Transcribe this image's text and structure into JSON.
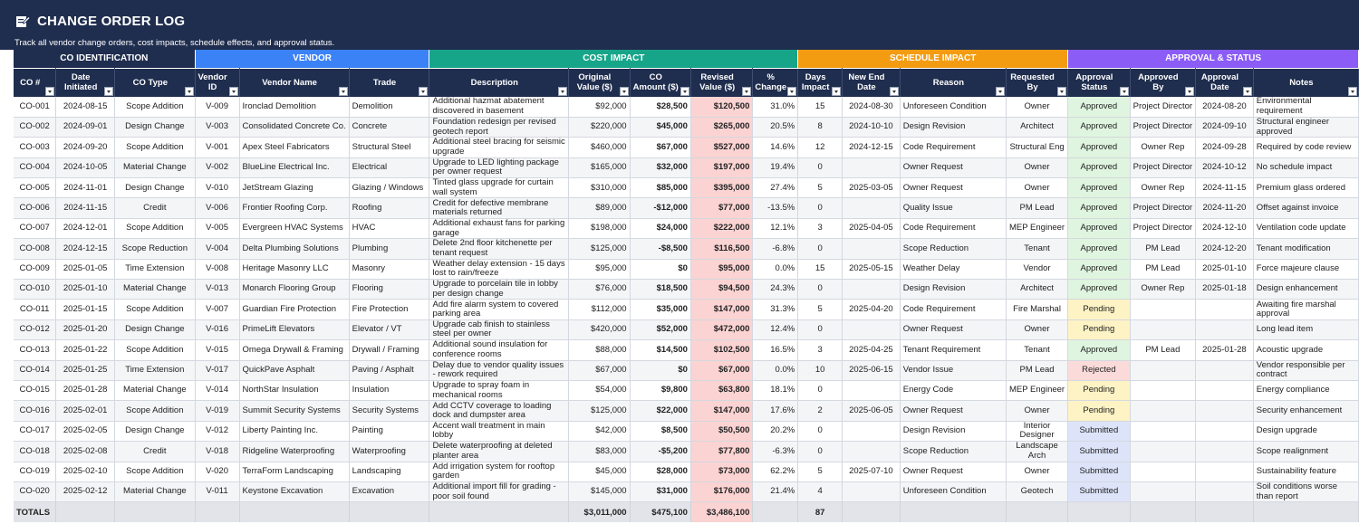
{
  "title": "CHANGE ORDER LOG",
  "subtitle": "Track all vendor change orders, cost impacts, schedule effects, and approval status.",
  "colors": {
    "header_bg": "#1f2d4e",
    "group_id": "#1f2d4e",
    "group_vendor": "#3b82f6",
    "group_cost": "#17a589",
    "group_schedule": "#f39c12",
    "group_approval": "#8b5cf6"
  },
  "groups": [
    {
      "label": "CO IDENTIFICATION",
      "span": 3,
      "color": "#1f2d4e"
    },
    {
      "label": "VENDOR",
      "span": 3,
      "color": "#3b82f6"
    },
    {
      "label": "COST IMPACT",
      "span": 5,
      "color": "#17a589"
    },
    {
      "label": "SCHEDULE IMPACT",
      "span": 4,
      "color": "#f39c12"
    },
    {
      "label": "APPROVAL & STATUS",
      "span": 4,
      "color": "#8b5cf6"
    }
  ],
  "headers": [
    "CO #",
    "Date Initiated",
    "CO Type",
    "Vendor ID",
    "Vendor Name",
    "Trade",
    "Description",
    "Original Value ($)",
    "CO Amount ($)",
    "Revised Value ($)",
    "% Change",
    "Days Impact",
    "New End Date",
    "Reason",
    "Requested By",
    "Approval Status",
    "Approved By",
    "Approval Date",
    "Notes"
  ],
  "rows": [
    [
      "CO-001",
      "2024-08-15",
      "Scope Addition",
      "V-009",
      "Ironclad Demolition",
      "Demolition",
      "Additional hazmat abatement discovered in basement",
      "$92,000",
      "$28,500",
      "$120,500",
      "31.0%",
      "15",
      "2024-08-30",
      "Unforeseen Condition",
      "Owner",
      "Approved",
      "Project Director",
      "2024-08-20",
      "Environmental requirement"
    ],
    [
      "CO-002",
      "2024-09-01",
      "Design Change",
      "V-003",
      "Consolidated Concrete Co.",
      "Concrete",
      "Foundation redesign per revised geotech report",
      "$220,000",
      "$45,000",
      "$265,000",
      "20.5%",
      "8",
      "2024-10-10",
      "Design Revision",
      "Architect",
      "Approved",
      "Project Director",
      "2024-09-10",
      "Structural engineer approved"
    ],
    [
      "CO-003",
      "2024-09-20",
      "Scope Addition",
      "V-001",
      "Apex Steel Fabricators",
      "Structural Steel",
      "Additional steel bracing for seismic upgrade",
      "$460,000",
      "$67,000",
      "$527,000",
      "14.6%",
      "12",
      "2024-12-15",
      "Code Requirement",
      "Structural Eng",
      "Approved",
      "Owner Rep",
      "2024-09-28",
      "Required by code review"
    ],
    [
      "CO-004",
      "2024-10-05",
      "Material Change",
      "V-002",
      "BlueLine Electrical Inc.",
      "Electrical",
      "Upgrade to LED lighting package per owner request",
      "$165,000",
      "$32,000",
      "$197,000",
      "19.4%",
      "0",
      "",
      "Owner Request",
      "Owner",
      "Approved",
      "Project Director",
      "2024-10-12",
      "No schedule impact"
    ],
    [
      "CO-005",
      "2024-11-01",
      "Design Change",
      "V-010",
      "JetStream Glazing",
      "Glazing / Windows",
      "Tinted glass upgrade for curtain wall system",
      "$310,000",
      "$85,000",
      "$395,000",
      "27.4%",
      "5",
      "2025-03-05",
      "Owner Request",
      "Owner",
      "Approved",
      "Owner Rep",
      "2024-11-15",
      "Premium glass ordered"
    ],
    [
      "CO-006",
      "2024-11-15",
      "Credit",
      "V-006",
      "Frontier Roofing Corp.",
      "Roofing",
      "Credit for defective membrane materials returned",
      "$89,000",
      "-$12,000",
      "$77,000",
      "-13.5%",
      "0",
      "",
      "Quality Issue",
      "PM Lead",
      "Approved",
      "Project Director",
      "2024-11-20",
      "Offset against invoice"
    ],
    [
      "CO-007",
      "2024-12-01",
      "Scope Addition",
      "V-005",
      "Evergreen HVAC Systems",
      "HVAC",
      "Additional exhaust fans for parking garage",
      "$198,000",
      "$24,000",
      "$222,000",
      "12.1%",
      "3",
      "2025-04-05",
      "Code Requirement",
      "MEP Engineer",
      "Approved",
      "Project Director",
      "2024-12-10",
      "Ventilation code update"
    ],
    [
      "CO-008",
      "2024-12-15",
      "Scope Reduction",
      "V-004",
      "Delta Plumbing Solutions",
      "Plumbing",
      "Delete 2nd floor kitchenette per tenant request",
      "$125,000",
      "-$8,500",
      "$116,500",
      "-6.8%",
      "0",
      "",
      "Scope Reduction",
      "Tenant",
      "Approved",
      "PM Lead",
      "2024-12-20",
      "Tenant modification"
    ],
    [
      "CO-009",
      "2025-01-05",
      "Time Extension",
      "V-008",
      "Heritage Masonry LLC",
      "Masonry",
      "Weather delay extension - 15 days lost to rain/freeze",
      "$95,000",
      "$0",
      "$95,000",
      "0.0%",
      "15",
      "2025-05-15",
      "Weather Delay",
      "Vendor",
      "Approved",
      "PM Lead",
      "2025-01-10",
      "Force majeure clause"
    ],
    [
      "CO-010",
      "2025-01-10",
      "Material Change",
      "V-013",
      "Monarch Flooring Group",
      "Flooring",
      "Upgrade to porcelain tile in lobby per design change",
      "$76,000",
      "$18,500",
      "$94,500",
      "24.3%",
      "0",
      "",
      "Design Revision",
      "Architect",
      "Approved",
      "Owner Rep",
      "2025-01-18",
      "Design enhancement"
    ],
    [
      "CO-011",
      "2025-01-15",
      "Scope Addition",
      "V-007",
      "Guardian Fire Protection",
      "Fire Protection",
      "Add fire alarm system to covered parking area",
      "$112,000",
      "$35,000",
      "$147,000",
      "31.3%",
      "5",
      "2025-04-20",
      "Code Requirement",
      "Fire Marshal",
      "Pending",
      "",
      "",
      "Awaiting fire marshal approval"
    ],
    [
      "CO-012",
      "2025-01-20",
      "Design Change",
      "V-016",
      "PrimeLift Elevators",
      "Elevator / VT",
      "Upgrade cab finish to stainless steel per owner",
      "$420,000",
      "$52,000",
      "$472,000",
      "12.4%",
      "0",
      "",
      "Owner Request",
      "Owner",
      "Pending",
      "",
      "",
      "Long lead item"
    ],
    [
      "CO-013",
      "2025-01-22",
      "Scope Addition",
      "V-015",
      "Omega Drywall & Framing",
      "Drywall / Framing",
      "Additional sound insulation for conference rooms",
      "$88,000",
      "$14,500",
      "$102,500",
      "16.5%",
      "3",
      "2025-04-25",
      "Tenant Requirement",
      "Tenant",
      "Approved",
      "PM Lead",
      "2025-01-28",
      "Acoustic upgrade"
    ],
    [
      "CO-014",
      "2025-01-25",
      "Time Extension",
      "V-017",
      "QuickPave Asphalt",
      "Paving / Asphalt",
      "Delay due to vendor quality issues - rework required",
      "$67,000",
      "$0",
      "$67,000",
      "0.0%",
      "10",
      "2025-06-15",
      "Vendor Issue",
      "PM Lead",
      "Rejected",
      "",
      "",
      "Vendor responsible per contract"
    ],
    [
      "CO-015",
      "2025-01-28",
      "Material Change",
      "V-014",
      "NorthStar Insulation",
      "Insulation",
      "Upgrade to spray foam in mechanical rooms",
      "$54,000",
      "$9,800",
      "$63,800",
      "18.1%",
      "0",
      "",
      "Energy Code",
      "MEP Engineer",
      "Pending",
      "",
      "",
      "Energy compliance"
    ],
    [
      "CO-016",
      "2025-02-01",
      "Scope Addition",
      "V-019",
      "Summit Security Systems",
      "Security Systems",
      "Add CCTV coverage to loading dock and dumpster area",
      "$125,000",
      "$22,000",
      "$147,000",
      "17.6%",
      "2",
      "2025-06-05",
      "Owner Request",
      "Owner",
      "Pending",
      "",
      "",
      "Security enhancement"
    ],
    [
      "CO-017",
      "2025-02-05",
      "Design Change",
      "V-012",
      "Liberty Painting Inc.",
      "Painting",
      "Accent wall treatment in main lobby",
      "$42,000",
      "$8,500",
      "$50,500",
      "20.2%",
      "0",
      "",
      "Design Revision",
      "Interior Designer",
      "Submitted",
      "",
      "",
      "Design upgrade"
    ],
    [
      "CO-018",
      "2025-02-08",
      "Credit",
      "V-018",
      "Ridgeline Waterproofing",
      "Waterproofing",
      "Delete waterproofing at deleted planter area",
      "$83,000",
      "-$5,200",
      "$77,800",
      "-6.3%",
      "0",
      "",
      "Scope Reduction",
      "Landscape Arch",
      "Submitted",
      "",
      "",
      "Scope realignment"
    ],
    [
      "CO-019",
      "2025-02-10",
      "Scope Addition",
      "V-020",
      "TerraForm Landscaping",
      "Landscaping",
      "Add irrigation system for rooftop garden",
      "$45,000",
      "$28,000",
      "$73,000",
      "62.2%",
      "5",
      "2025-07-10",
      "Owner Request",
      "Owner",
      "Submitted",
      "",
      "",
      "Sustainability feature"
    ],
    [
      "CO-020",
      "2025-02-12",
      "Material Change",
      "V-011",
      "Keystone Excavation",
      "Excavation",
      "Additional import fill for grading - poor soil found",
      "$145,000",
      "$31,000",
      "$176,000",
      "21.4%",
      "4",
      "",
      "Unforeseen Condition",
      "Geotech",
      "Submitted",
      "",
      "",
      "Soil conditions worse than report"
    ]
  ],
  "totals": {
    "label": "TOTALS",
    "original": "$3,011,000",
    "co_amount": "$475,100",
    "revised": "$3,486,100",
    "days": "87"
  }
}
